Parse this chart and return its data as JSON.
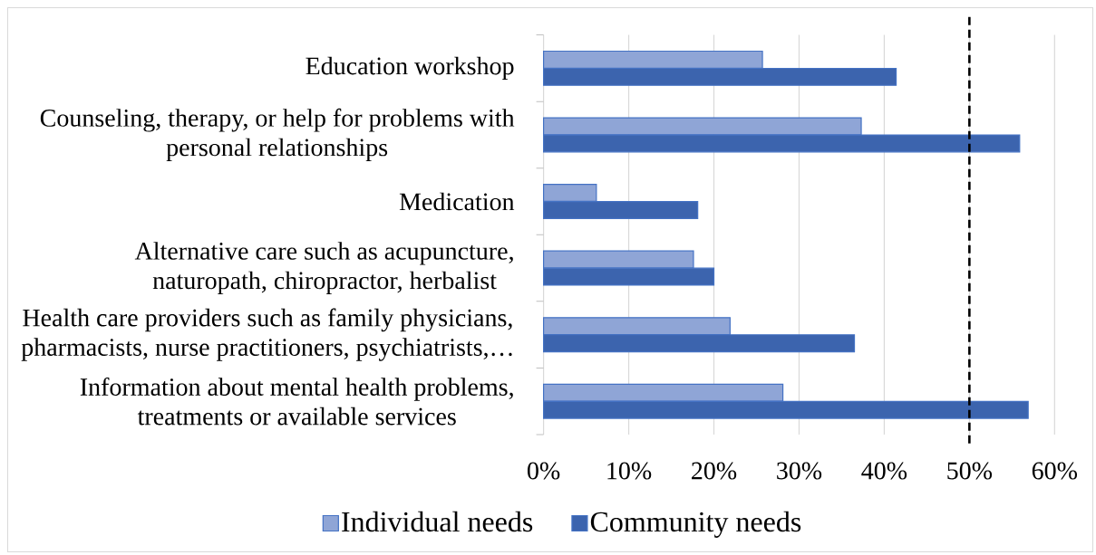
{
  "chart_data": {
    "type": "bar",
    "orientation": "horizontal",
    "categories": [
      "Education workshop",
      "Counseling, therapy, or help for problems with personal relationships",
      "Medication",
      "Alternative care such as acupuncture, naturopath, chiropractor, herbalist",
      "Health care providers such as family physicians, pharmacists, nurse practitioners, psychiatrists,…",
      "Information about mental health problems, treatments or available services"
    ],
    "series": [
      {
        "name": "Individual needs",
        "color": "#8fa5d6",
        "values": [
          25.7,
          37.3,
          6.2,
          17.6,
          21.9,
          28.1
        ]
      },
      {
        "name": "Community needs",
        "color": "#3c64ae",
        "values": [
          41.4,
          55.9,
          18.1,
          20.0,
          36.5,
          56.9
        ]
      }
    ],
    "xlim": [
      0,
      60
    ],
    "xticks": [
      {
        "value": 0,
        "label": "0%"
      },
      {
        "value": 10,
        "label": "10%"
      },
      {
        "value": 20,
        "label": "20%"
      },
      {
        "value": 30,
        "label": "30%"
      },
      {
        "value": 40,
        "label": "40%"
      },
      {
        "value": 50,
        "label": "50%"
      },
      {
        "value": 60,
        "label": "60%"
      }
    ],
    "ref_lines": [
      {
        "axis": "x",
        "value": 50,
        "line_style": "dashed",
        "color": "#000000"
      }
    ],
    "grid": "x",
    "legend": "bottom"
  }
}
